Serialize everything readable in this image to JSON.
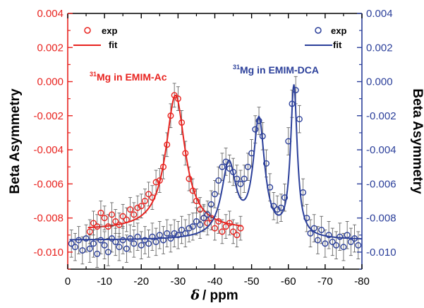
{
  "chart_data": {
    "type": "scatter",
    "xlabel_symbol": "δ",
    "xlabel_unit": "/ ppm",
    "ylabel_left": "Beta Asymmetry",
    "ylabel_right": "Beta Asymmetry",
    "xlim": [
      0,
      -80
    ],
    "ylim": [
      -0.011,
      0.004
    ],
    "x_ticks": [
      0,
      -10,
      -20,
      -30,
      -40,
      -50,
      -60,
      -70,
      -80
    ],
    "x_tick_labels": [
      "0",
      "-10",
      "-20",
      "-30",
      "-40",
      "-50",
      "-60",
      "-70",
      "-80"
    ],
    "y_ticks": [
      0.004,
      0.002,
      0.0,
      -0.002,
      -0.004,
      -0.006,
      -0.008,
      -0.01
    ],
    "y_tick_labels": [
      "0.004",
      "0.002",
      "0.000",
      "-0.002",
      "-0.004",
      "-0.006",
      "-0.008",
      "-0.010"
    ],
    "colors": {
      "red": "#e8231f",
      "blue": "#2b3f9a",
      "error_bar": "#555555",
      "axis": "#000000"
    },
    "legends": [
      {
        "items": [
          "exp",
          "fit"
        ],
        "color_key": "red",
        "position": "top-left"
      },
      {
        "items": [
          "exp",
          "fit"
        ],
        "color_key": "blue",
        "position": "top-right"
      }
    ],
    "annotations": [
      {
        "superscript": "31",
        "text": "Mg in EMIM-Ac",
        "color_key": "red",
        "x": -18,
        "y": -0.00065
      },
      {
        "superscript": "31",
        "text": "Mg in EMIM-DCA",
        "color_key": "blue",
        "x": -44,
        "y": -0.00045
      }
    ],
    "series": [
      {
        "name": "31Mg in EMIM-Ac",
        "color_key": "red",
        "fit": {
          "model": "lorentzian",
          "baseline": -0.0087,
          "peaks": [
            {
              "center": -29.3,
              "width": 3.2,
              "amplitude": 0.0079
            }
          ],
          "x_range": [
            -5.5,
            -47.5
          ]
        },
        "points": [
          [
            -6,
            -0.0088,
            0.0007
          ],
          [
            -7,
            -0.0083,
            0.0007
          ],
          [
            -8,
            -0.0085,
            0.0007
          ],
          [
            -9,
            -0.0077,
            0.0007
          ],
          [
            -10,
            -0.008,
            0.0007
          ],
          [
            -11,
            -0.0085,
            0.0007
          ],
          [
            -12,
            -0.0078,
            0.0007
          ],
          [
            -13,
            -0.0082,
            0.0007
          ],
          [
            -14,
            -0.0084,
            0.0007
          ],
          [
            -15,
            -0.0079,
            0.0007
          ],
          [
            -16,
            -0.0081,
            0.0007
          ],
          [
            -17,
            -0.0075,
            0.0007
          ],
          [
            -18,
            -0.0078,
            0.0007
          ],
          [
            -19,
            -0.0074,
            0.0007
          ],
          [
            -20,
            -0.0073,
            0.0007
          ],
          [
            -21,
            -0.007,
            0.0007
          ],
          [
            -22,
            -0.0066,
            0.0007
          ],
          [
            -23,
            -0.0068,
            0.0007
          ],
          [
            -24,
            -0.0059,
            0.0007
          ],
          [
            -25,
            -0.0058,
            0.0007
          ],
          [
            -26,
            -0.005,
            0.0007
          ],
          [
            -27,
            -0.0037,
            0.0007
          ],
          [
            -28,
            -0.002,
            0.0007
          ],
          [
            -29,
            -0.0008,
            0.0007
          ],
          [
            -30,
            -0.001,
            0.0007
          ],
          [
            -31,
            -0.0024,
            0.0007
          ],
          [
            -32,
            -0.0042,
            0.0007
          ],
          [
            -33,
            -0.0057,
            0.0007
          ],
          [
            -34,
            -0.0064,
            0.0007
          ],
          [
            -35,
            -0.007,
            0.0007
          ],
          [
            -36,
            -0.0075,
            0.0007
          ],
          [
            -37,
            -0.008,
            0.0007
          ],
          [
            -38,
            -0.0083,
            0.0007
          ],
          [
            -39,
            -0.008,
            0.0007
          ],
          [
            -40,
            -0.0086,
            0.0007
          ],
          [
            -41,
            -0.0082,
            0.0007
          ],
          [
            -42,
            -0.0088,
            0.0007
          ],
          [
            -43,
            -0.0085,
            0.0007
          ],
          [
            -44,
            -0.0083,
            0.0007
          ],
          [
            -45,
            -0.0088,
            0.0007
          ],
          [
            -46,
            -0.009,
            0.0007
          ],
          [
            -47,
            -0.0086,
            0.0007
          ]
        ]
      },
      {
        "name": "31Mg in EMIM-DCA",
        "color_key": "blue",
        "fit": {
          "model": "lorentzian",
          "baseline": -0.0093,
          "peaks": [
            {
              "center": -43.8,
              "width": 2.4,
              "amplitude": 0.0043
            },
            {
              "center": -52.0,
              "width": 1.9,
              "amplitude": 0.0068
            },
            {
              "center": -61.5,
              "width": 1.1,
              "amplitude": 0.0088
            }
          ],
          "x_range": [
            -0.5,
            -80
          ]
        },
        "points": [
          [
            -1,
            -0.0095,
            0.0008
          ],
          [
            -2,
            -0.0097,
            0.0008
          ],
          [
            -3,
            -0.0093,
            0.0008
          ],
          [
            -4,
            -0.0099,
            0.0008
          ],
          [
            -5,
            -0.0092,
            0.0008
          ],
          [
            -6,
            -0.0098,
            0.0008
          ],
          [
            -7,
            -0.0095,
            0.0008
          ],
          [
            -8,
            -0.0101,
            0.0008
          ],
          [
            -9,
            -0.0093,
            0.0008
          ],
          [
            -10,
            -0.0096,
            0.0008
          ],
          [
            -11,
            -0.01,
            0.0008
          ],
          [
            -12,
            -0.0092,
            0.0008
          ],
          [
            -13,
            -0.0094,
            0.0008
          ],
          [
            -14,
            -0.0097,
            0.0008
          ],
          [
            -15,
            -0.0093,
            0.0008
          ],
          [
            -16,
            -0.0098,
            0.0008
          ],
          [
            -17,
            -0.0092,
            0.0008
          ],
          [
            -18,
            -0.0095,
            0.0008
          ],
          [
            -19,
            -0.0091,
            0.0008
          ],
          [
            -20,
            -0.0096,
            0.0008
          ],
          [
            -21,
            -0.0093,
            0.0008
          ],
          [
            -22,
            -0.0095,
            0.0008
          ],
          [
            -23,
            -0.0091,
            0.0008
          ],
          [
            -24,
            -0.0094,
            0.0008
          ],
          [
            -25,
            -0.009,
            0.0008
          ],
          [
            -26,
            -0.0093,
            0.0008
          ],
          [
            -27,
            -0.0089,
            0.0008
          ],
          [
            -28,
            -0.0092,
            0.0008
          ],
          [
            -29,
            -0.0089,
            0.0008
          ],
          [
            -30,
            -0.009,
            0.0008
          ],
          [
            -31,
            -0.0087,
            0.0008
          ],
          [
            -32,
            -0.0089,
            0.0008
          ],
          [
            -33,
            -0.0086,
            0.0008
          ],
          [
            -34,
            -0.0085,
            0.0008
          ],
          [
            -35,
            -0.0082,
            0.0008
          ],
          [
            -36,
            -0.0084,
            0.0008
          ],
          [
            -37,
            -0.008,
            0.0008
          ],
          [
            -38,
            -0.0078,
            0.0008
          ],
          [
            -39,
            -0.0072,
            0.0008
          ],
          [
            -40,
            -0.0066,
            0.0008
          ],
          [
            -41,
            -0.0058,
            0.0008
          ],
          [
            -42,
            -0.005,
            0.0008
          ],
          [
            -43,
            -0.0047,
            0.0008
          ],
          [
            -44,
            -0.0051,
            0.0008
          ],
          [
            -45,
            -0.0053,
            0.0008
          ],
          [
            -46,
            -0.0057,
            0.0008
          ],
          [
            -47,
            -0.006,
            0.0008
          ],
          [
            -48,
            -0.0057,
            0.0008
          ],
          [
            -49,
            -0.005,
            0.0008
          ],
          [
            -50,
            -0.0042,
            0.0008
          ],
          [
            -51,
            -0.0028,
            0.0008
          ],
          [
            -52,
            -0.0023,
            0.0008
          ],
          [
            -53,
            -0.0032,
            0.0008
          ],
          [
            -54,
            -0.0048,
            0.0008
          ],
          [
            -55,
            -0.0062,
            0.0008
          ],
          [
            -56,
            -0.0073,
            0.0008
          ],
          [
            -57,
            -0.0075,
            0.0008
          ],
          [
            -58,
            -0.0074,
            0.0008
          ],
          [
            -59,
            -0.0068,
            0.0008
          ],
          [
            -60,
            -0.0035,
            0.0008
          ],
          [
            -61,
            -0.0013,
            0.0008
          ],
          [
            -62,
            -0.0005,
            0.0008
          ],
          [
            -63,
            -0.0022,
            0.0008
          ],
          [
            -64,
            -0.0065,
            0.0008
          ],
          [
            -65,
            -0.008,
            0.0008
          ],
          [
            -66,
            -0.0089,
            0.0008
          ],
          [
            -67,
            -0.0086,
            0.0008
          ],
          [
            -68,
            -0.0093,
            0.0008
          ],
          [
            -69,
            -0.0087,
            0.0008
          ],
          [
            -70,
            -0.0095,
            0.0008
          ],
          [
            -71,
            -0.009,
            0.0008
          ],
          [
            -72,
            -0.0094,
            0.0008
          ],
          [
            -73,
            -0.0096,
            0.0008
          ],
          [
            -74,
            -0.0091,
            0.0008
          ],
          [
            -75,
            -0.0097,
            0.0008
          ],
          [
            -76,
            -0.009,
            0.0008
          ],
          [
            -77,
            -0.0094,
            0.0008
          ],
          [
            -78,
            -0.0092,
            0.0008
          ],
          [
            -79,
            -0.0096,
            0.0008
          ]
        ]
      }
    ]
  }
}
